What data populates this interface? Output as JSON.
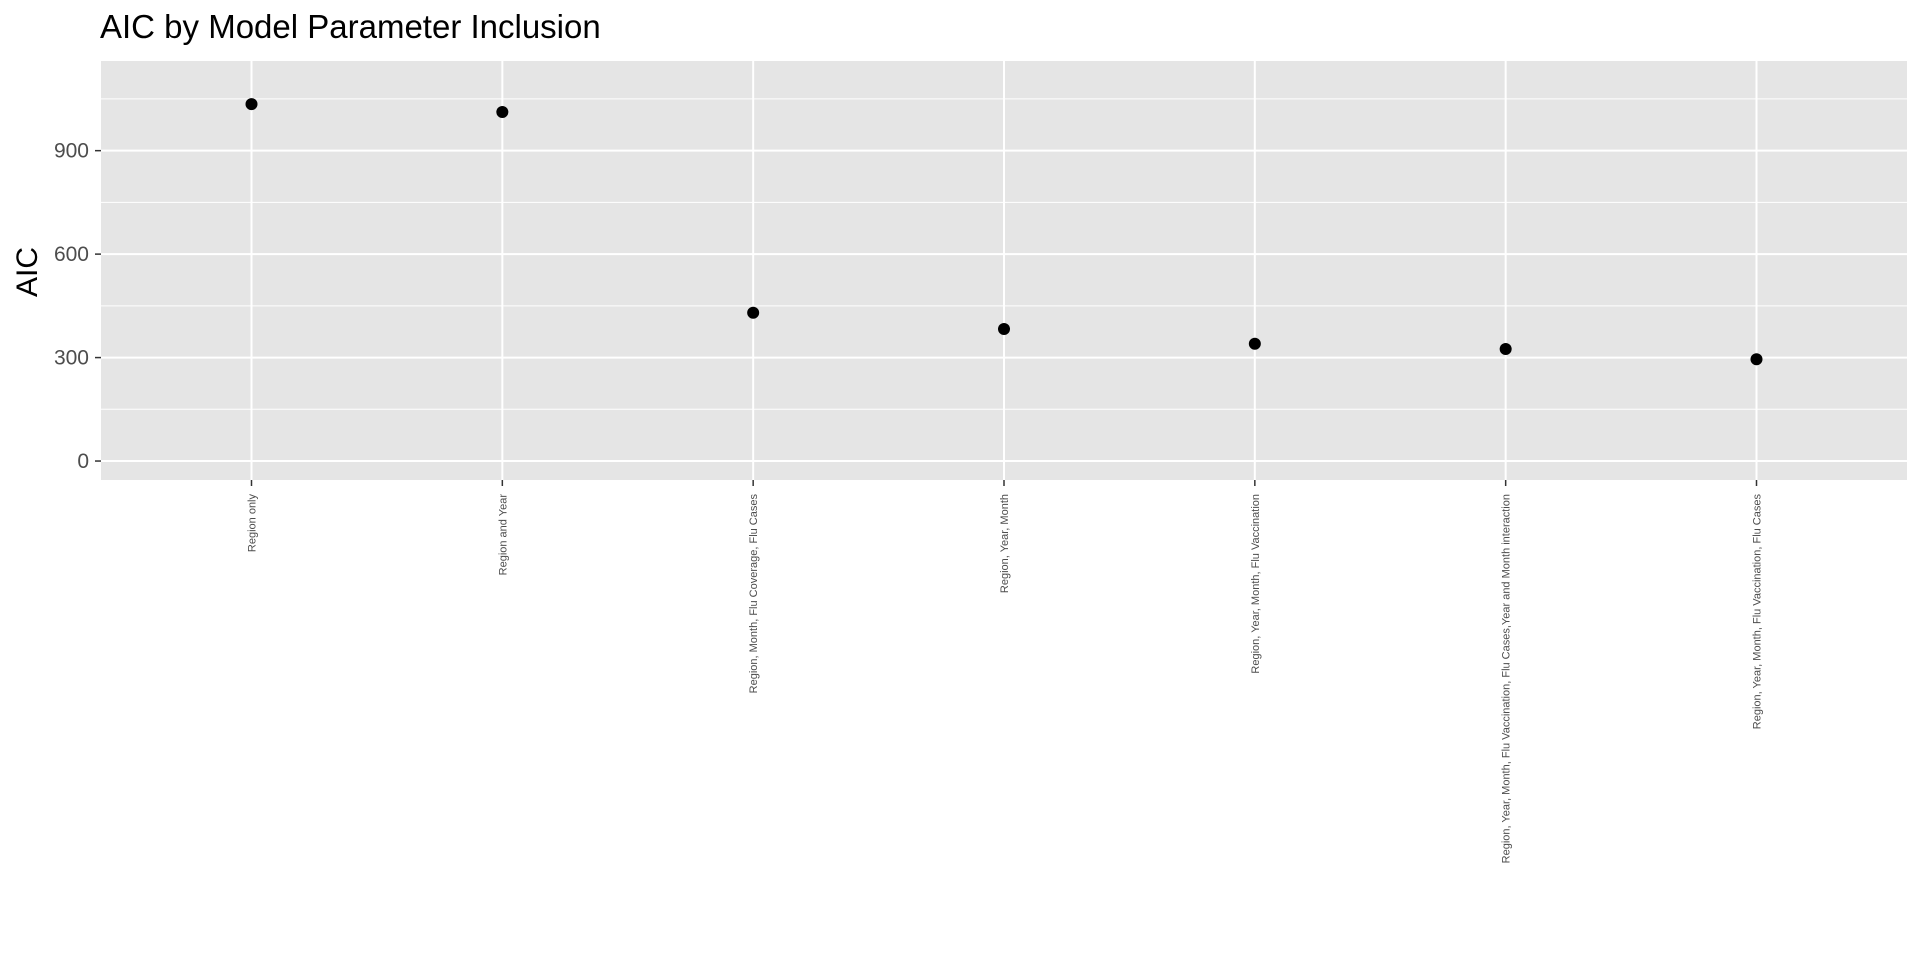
{
  "chart_data": {
    "type": "scatter",
    "title": "AIC by Model Parameter Inclusion",
    "xlabel": "",
    "ylabel": "AIC",
    "categories": [
      "Region only",
      "Region and Year",
      "Region, Month, Flu Coverage, Flu Cases",
      "Region, Year, Month",
      "Region, Year, Month, Flu Vaccination",
      "Region, Year, Month, Flu Vaccination, Flu Cases,Year and Month interaction",
      "Region, Year, Month, Flu Vaccination, Flu Cases"
    ],
    "values": [
      1035,
      1012,
      430,
      383,
      340,
      325,
      295
    ],
    "ylim": [
      -55,
      1160
    ],
    "yticks": [
      "0",
      "300",
      "600",
      "900"
    ],
    "ytick_values": [
      0,
      300,
      600,
      900
    ],
    "grid": true,
    "legend": "none",
    "colors": {
      "panel": "#e5e5e5",
      "grid": "#ffffff",
      "point": "#000000",
      "text": "#000000",
      "tick_text": "#4d4d4d",
      "tick_mark": "#333333"
    }
  }
}
